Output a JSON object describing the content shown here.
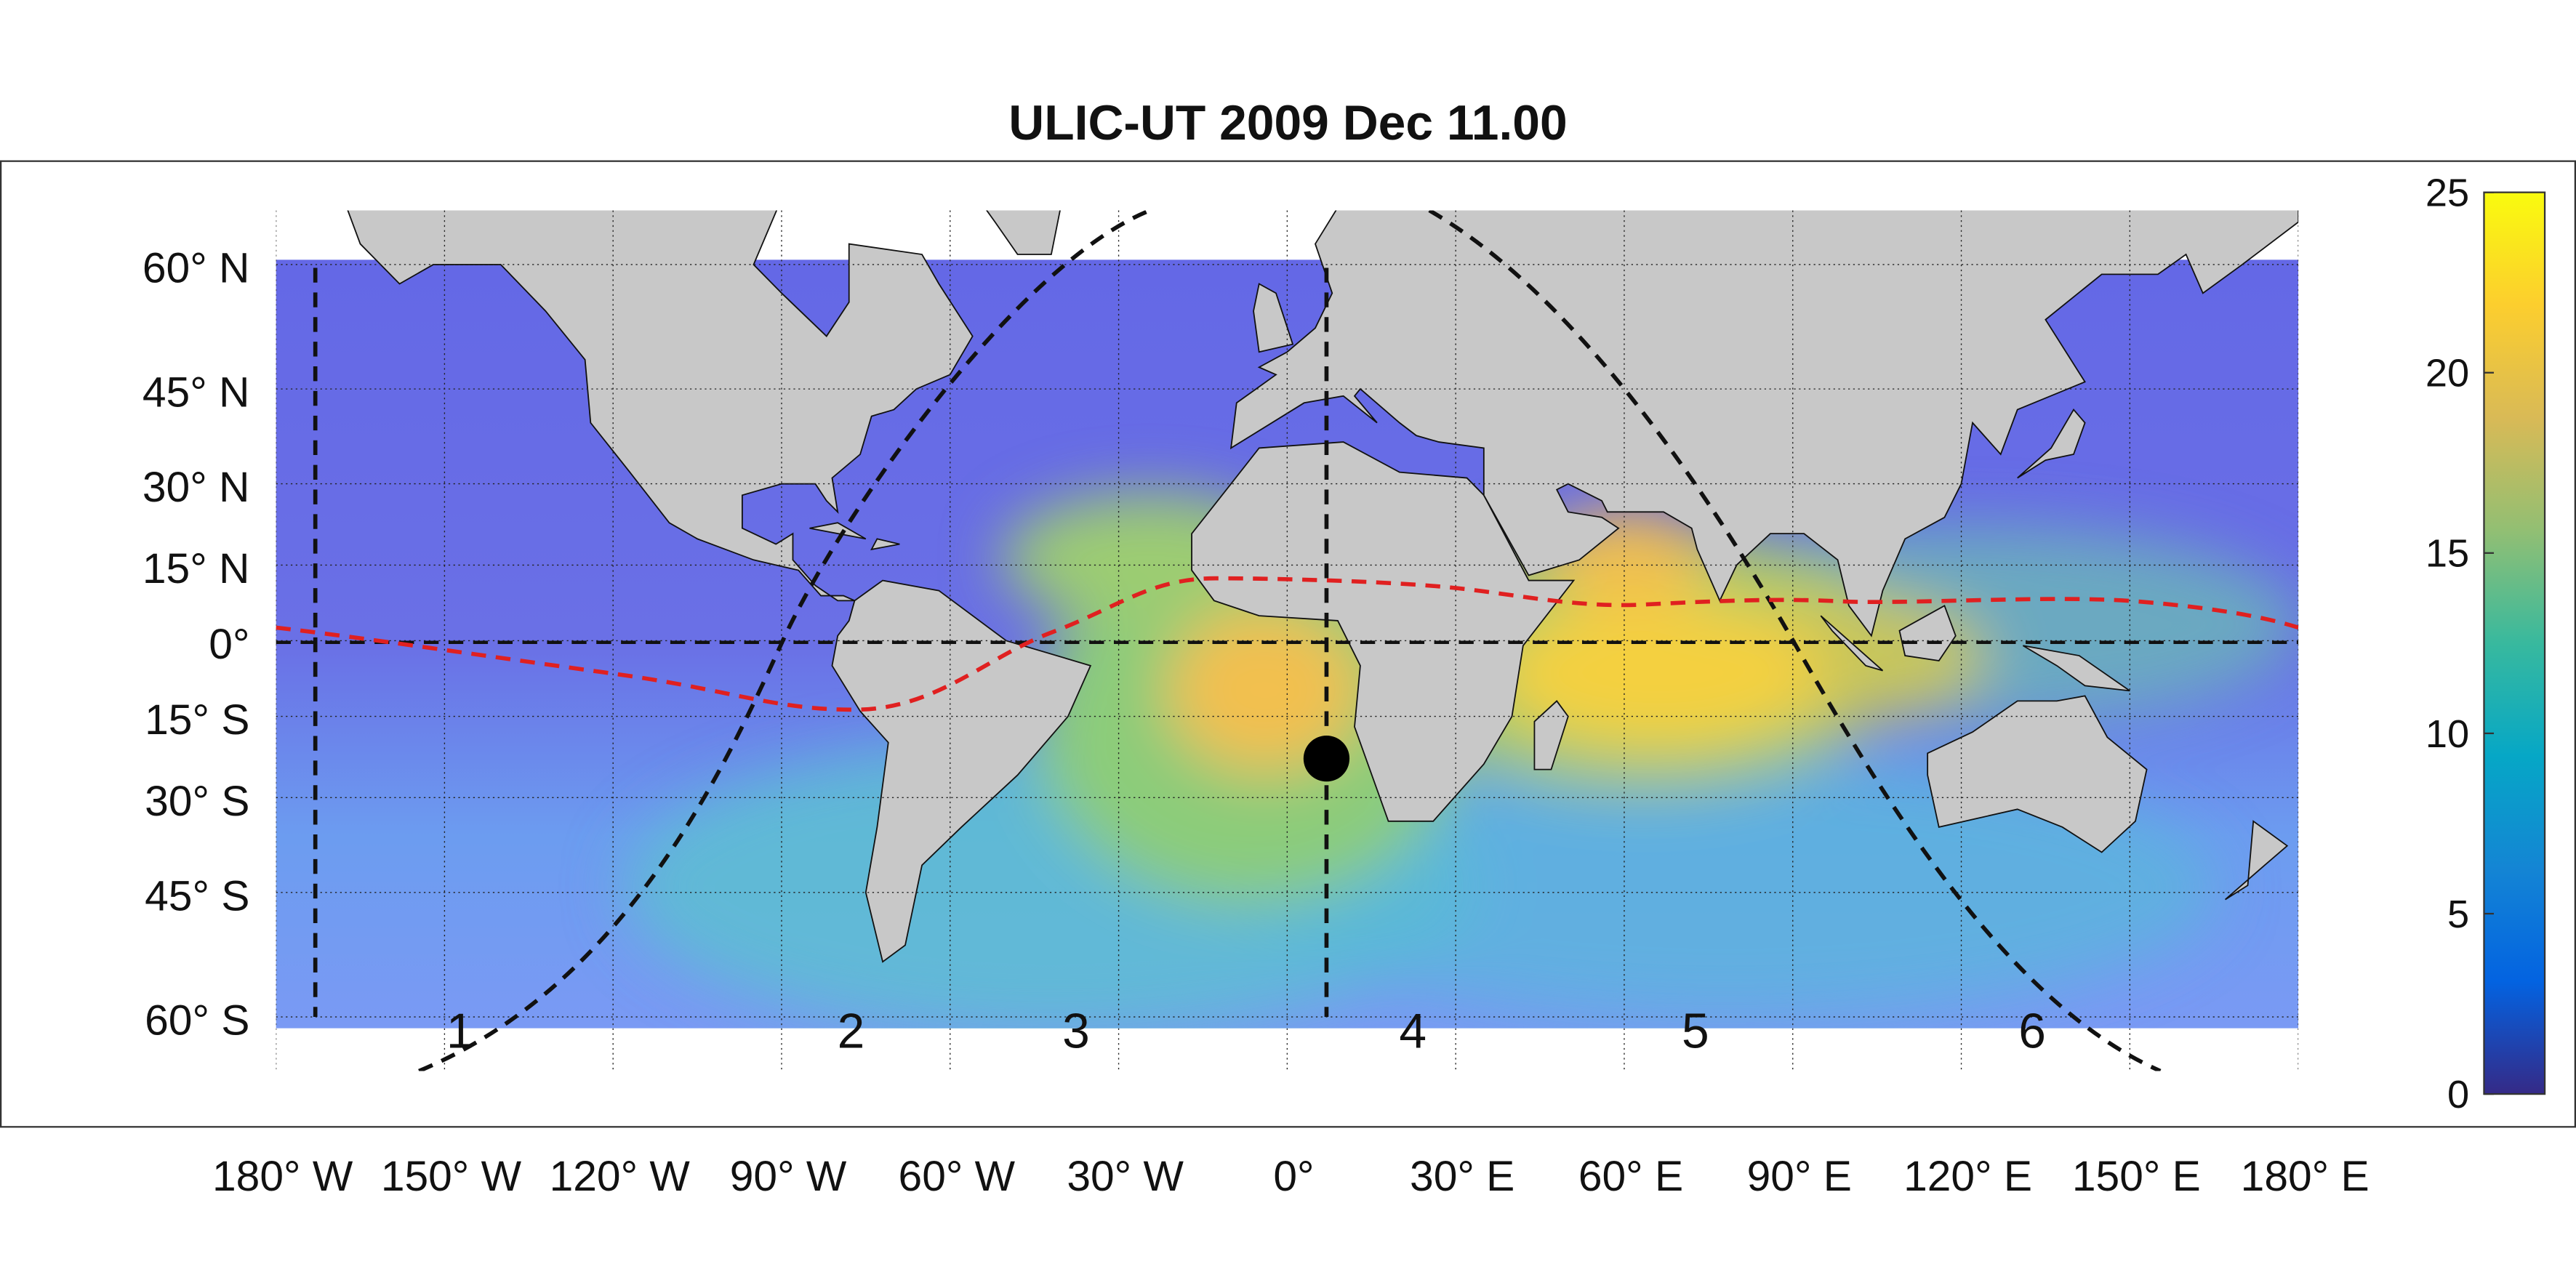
{
  "title": "ULIC-UT 2009 Dec 11.00",
  "map": {
    "xlim": [
      -180,
      180
    ],
    "ylim": [
      -65,
      65
    ],
    "xticks": [
      {
        "value": -180,
        "label": "180° W"
      },
      {
        "value": -150,
        "label": "150° W"
      },
      {
        "value": -120,
        "label": "120° W"
      },
      {
        "value": -90,
        "label": "90° W"
      },
      {
        "value": -60,
        "label": "60° W"
      },
      {
        "value": -30,
        "label": "30° W"
      },
      {
        "value": 0,
        "label": "0°"
      },
      {
        "value": 30,
        "label": "30° E"
      },
      {
        "value": 60,
        "label": "60° E"
      },
      {
        "value": 90,
        "label": "90° E"
      },
      {
        "value": 120,
        "label": "120° E"
      },
      {
        "value": 150,
        "label": "150° E"
      },
      {
        "value": 180,
        "label": "180° E"
      }
    ],
    "yticks": [
      {
        "value": 60,
        "label": "60° N"
      },
      {
        "value": 45,
        "label": "45° N"
      },
      {
        "value": 30,
        "label": "30° N"
      },
      {
        "value": 15,
        "label": "15° N"
      },
      {
        "value": 0,
        "label": "0°"
      },
      {
        "value": -15,
        "label": "15° S"
      },
      {
        "value": -30,
        "label": "30° S"
      },
      {
        "value": -45,
        "label": "45° S"
      },
      {
        "value": -60,
        "label": "60° S"
      }
    ]
  },
  "colorbar": {
    "lim": [
      0,
      25
    ],
    "ticks": [
      0,
      5,
      10,
      15,
      20,
      25
    ]
  },
  "regions": [
    "1",
    "2",
    "3",
    "4",
    "5",
    "6"
  ],
  "marker": {
    "lon": 7,
    "lat": -23
  }
}
